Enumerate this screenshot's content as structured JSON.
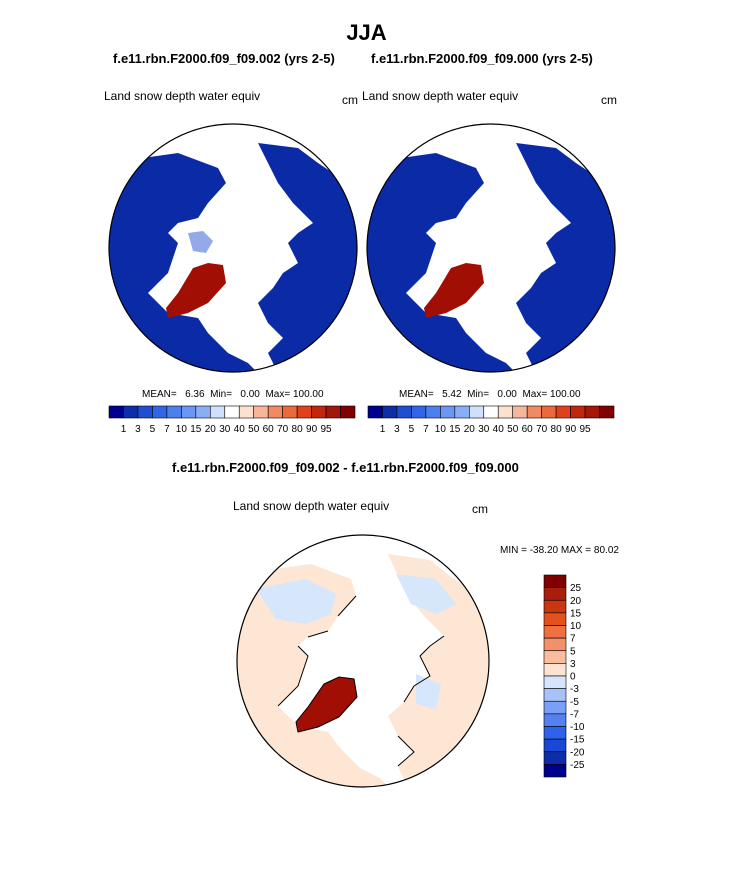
{
  "page_title": "JJA",
  "panels": [
    {
      "case": "f.e11.rbn.F2000.f09_f09.002 (yrs 2-5)",
      "variable": "Land snow depth water equiv",
      "units": "cm",
      "stats": {
        "mean_label": "MEAN=",
        "mean": "6.36",
        "min_label": "Min=",
        "min": "0.00",
        "max_label": "Max=",
        "max": "100.00"
      }
    },
    {
      "case": "f.e11.rbn.F2000.f09_f09.000 (yrs 2-5)",
      "variable": "Land snow depth water equiv",
      "units": "cm",
      "stats": {
        "mean_label": "MEAN=",
        "mean": "5.42",
        "min_label": "Min=",
        "min": "0.00",
        "max_label": "Max=",
        "max": "100.00"
      }
    }
  ],
  "diff_panel": {
    "title": "f.e11.rbn.F2000.f09_f09.002 - f.e11.rbn.F2000.f09_f09.000",
    "variable": "Land snow depth water equiv",
    "units": "cm",
    "minmax": "MIN = -38.20 MAX =  80.02"
  },
  "colors": {
    "abs_scale": [
      "#00008f",
      "#0a2fa8",
      "#1f4fd1",
      "#3366e6",
      "#4d7fee",
      "#6b96f2",
      "#8aaef5",
      "#cfe0fb",
      "#ffffff",
      "#fde1cf",
      "#f6b699",
      "#f08a63",
      "#ea6a3c",
      "#e0401a",
      "#c2260c",
      "#a4150a",
      "#800000"
    ],
    "diff_scale": [
      "#00008f",
      "#0d2ca8",
      "#1a47d6",
      "#2d62ec",
      "#5580f2",
      "#7a9ff6",
      "#a8c2f9",
      "#d7e5fc",
      "#fde4d0",
      "#f8bd9c",
      "#f29069",
      "#ee6f3f",
      "#e4511c",
      "#c9360f",
      "#a81e0a",
      "#800000"
    ],
    "map_ocean": "#ffffff",
    "map_low": "#0b2aa6",
    "map_high": "#a00e04",
    "diff_pos": "#fde6d3",
    "diff_neg": "#d6e6fb"
  },
  "chart_data": [
    {
      "type": "heatmap",
      "title": "Land snow depth water equiv",
      "units": "cm",
      "projection": "north polar stereographic",
      "colorbar": {
        "orientation": "horizontal",
        "levels": [
          "1",
          "3",
          "5",
          "7",
          "10",
          "15",
          "20",
          "30",
          "40",
          "50",
          "60",
          "70",
          "80",
          "90",
          "95"
        ]
      },
      "mean": 6.36,
      "min": 0.0,
      "max": 100.0
    },
    {
      "type": "heatmap",
      "title": "Land snow depth water equiv",
      "units": "cm",
      "projection": "north polar stereographic",
      "colorbar": {
        "orientation": "horizontal",
        "levels": [
          "1",
          "3",
          "5",
          "7",
          "10",
          "15",
          "20",
          "30",
          "40",
          "50",
          "60",
          "70",
          "80",
          "90",
          "95"
        ]
      },
      "mean": 5.42,
      "min": 0.0,
      "max": 100.0
    },
    {
      "type": "heatmap",
      "title": "Land snow depth water equiv",
      "units": "cm",
      "projection": "north polar stereographic",
      "colorbar": {
        "orientation": "vertical",
        "levels": [
          "25",
          "20",
          "15",
          "10",
          "7",
          "5",
          "3",
          "0",
          "-3",
          "-5",
          "-7",
          "-10",
          "-15",
          "-20",
          "-25"
        ]
      },
      "min": -38.2,
      "max": 80.02
    }
  ]
}
